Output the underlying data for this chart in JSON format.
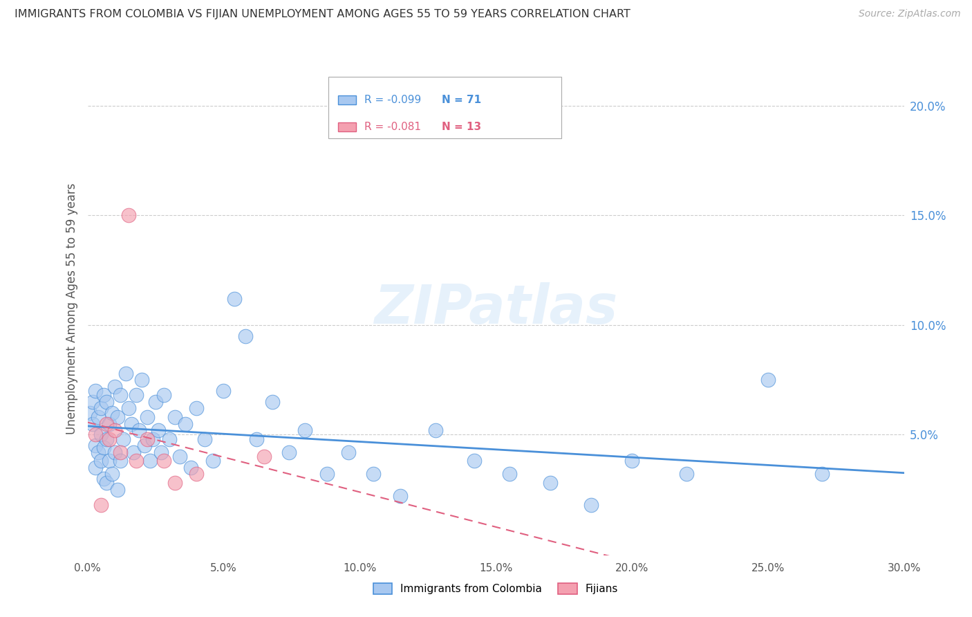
{
  "title": "IMMIGRANTS FROM COLOMBIA VS FIJIAN UNEMPLOYMENT AMONG AGES 55 TO 59 YEARS CORRELATION CHART",
  "source": "Source: ZipAtlas.com",
  "ylabel": "Unemployment Among Ages 55 to 59 years",
  "xlim": [
    0.0,
    0.3
  ],
  "ylim": [
    -0.005,
    0.22
  ],
  "xticks": [
    0.0,
    0.05,
    0.1,
    0.15,
    0.2,
    0.25,
    0.3
  ],
  "xtick_labels": [
    "0.0%",
    "5.0%",
    "10.0%",
    "15.0%",
    "20.0%",
    "25.0%",
    "30.0%"
  ],
  "yticks_right": [
    0.05,
    0.1,
    0.15,
    0.2
  ],
  "ytick_right_labels": [
    "5.0%",
    "10.0%",
    "15.0%",
    "20.0%"
  ],
  "colombia_color": "#a8c8f0",
  "fijian_color": "#f4a0b0",
  "colombia_line_color": "#4a90d9",
  "fijian_line_color": "#e06080",
  "R_colombia": -0.099,
  "N_colombia": 71,
  "R_fijian": -0.081,
  "N_fijian": 13,
  "colombia_x": [
    0.001,
    0.002,
    0.002,
    0.003,
    0.003,
    0.003,
    0.004,
    0.004,
    0.005,
    0.005,
    0.005,
    0.006,
    0.006,
    0.006,
    0.007,
    0.007,
    0.007,
    0.008,
    0.008,
    0.009,
    0.009,
    0.01,
    0.01,
    0.011,
    0.011,
    0.012,
    0.012,
    0.013,
    0.014,
    0.015,
    0.016,
    0.017,
    0.018,
    0.019,
    0.02,
    0.021,
    0.022,
    0.023,
    0.024,
    0.025,
    0.026,
    0.027,
    0.028,
    0.03,
    0.032,
    0.034,
    0.036,
    0.038,
    0.04,
    0.043,
    0.046,
    0.05,
    0.054,
    0.058,
    0.062,
    0.068,
    0.074,
    0.08,
    0.088,
    0.096,
    0.105,
    0.115,
    0.128,
    0.142,
    0.155,
    0.17,
    0.185,
    0.2,
    0.22,
    0.25,
    0.27
  ],
  "colombia_y": [
    0.06,
    0.055,
    0.065,
    0.045,
    0.07,
    0.035,
    0.058,
    0.042,
    0.062,
    0.038,
    0.05,
    0.068,
    0.044,
    0.03,
    0.065,
    0.048,
    0.028,
    0.055,
    0.038,
    0.06,
    0.032,
    0.072,
    0.042,
    0.058,
    0.025,
    0.068,
    0.038,
    0.048,
    0.078,
    0.062,
    0.055,
    0.042,
    0.068,
    0.052,
    0.075,
    0.045,
    0.058,
    0.038,
    0.048,
    0.065,
    0.052,
    0.042,
    0.068,
    0.048,
    0.058,
    0.04,
    0.055,
    0.035,
    0.062,
    0.048,
    0.038,
    0.07,
    0.112,
    0.095,
    0.048,
    0.065,
    0.042,
    0.052,
    0.032,
    0.042,
    0.032,
    0.022,
    0.052,
    0.038,
    0.032,
    0.028,
    0.018,
    0.038,
    0.032,
    0.075,
    0.032
  ],
  "fijian_x": [
    0.015,
    0.003,
    0.005,
    0.007,
    0.008,
    0.01,
    0.012,
    0.018,
    0.022,
    0.028,
    0.032,
    0.04,
    0.065
  ],
  "fijian_y": [
    0.15,
    0.05,
    0.018,
    0.055,
    0.048,
    0.052,
    0.042,
    0.038,
    0.048,
    0.038,
    0.028,
    0.032,
    0.04
  ],
  "watermark": "ZIPatlas",
  "background_color": "#ffffff",
  "grid_color": "#cccccc"
}
